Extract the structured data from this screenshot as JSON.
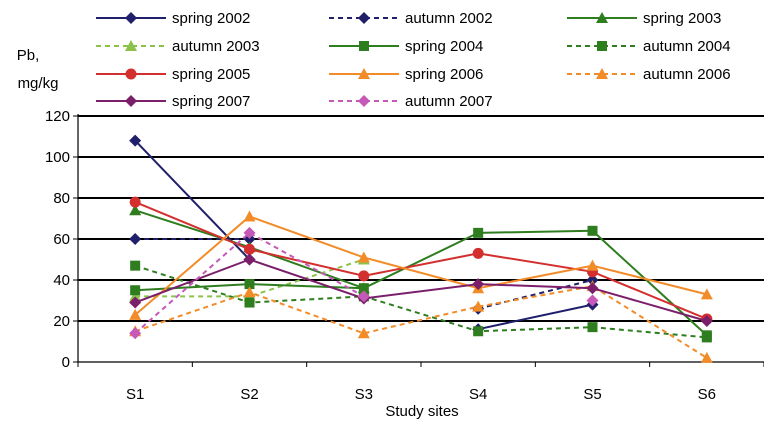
{
  "chart_data": {
    "type": "line",
    "ylabel_line1": "Pb,",
    "ylabel_line2": "mg/kg",
    "xlabel": "Study sites",
    "categories": [
      "S1",
      "S2",
      "S3",
      "S4",
      "S5",
      "S6"
    ],
    "ylim": [
      0,
      120
    ],
    "yticks": [
      0,
      20,
      40,
      60,
      80,
      100,
      120
    ],
    "grid": true,
    "legend_placement": "top",
    "series": [
      {
        "name": "spring 2002",
        "values": [
          108,
          50,
          null,
          16,
          28,
          null
        ],
        "color": "#1f1f6b",
        "dash": false,
        "marker": "diamond"
      },
      {
        "name": "autumn 2002",
        "values": [
          60,
          60,
          null,
          26,
          40,
          null
        ],
        "color": "#1f1f6b",
        "dash": true,
        "marker": "diamond"
      },
      {
        "name": "spring 2003",
        "values": [
          74,
          56,
          36,
          null,
          null,
          null
        ],
        "color": "#2e7d1e",
        "dash": false,
        "marker": "triangle"
      },
      {
        "name": "autumn 2003",
        "values": [
          32,
          32,
          50,
          null,
          null,
          null
        ],
        "color": "#8bc34a",
        "dash": true,
        "marker": "triangle"
      },
      {
        "name": "spring 2004",
        "values": [
          35,
          38,
          36,
          63,
          64,
          13
        ],
        "color": "#2e7d1e",
        "dash": false,
        "marker": "square"
      },
      {
        "name": "autumn 2004",
        "values": [
          47,
          29,
          32,
          15,
          17,
          12
        ],
        "color": "#2e7d1e",
        "dash": true,
        "marker": "square"
      },
      {
        "name": "spring 2005",
        "values": [
          78,
          55,
          42,
          53,
          44,
          21
        ],
        "color": "#d32f2f",
        "dash": false,
        "marker": "circle"
      },
      {
        "name": "spring 2006",
        "values": [
          23,
          71,
          51,
          36,
          47,
          33
        ],
        "color": "#f28c28",
        "dash": false,
        "marker": "triangle"
      },
      {
        "name": "autumn 2006",
        "values": [
          15,
          34,
          14,
          27,
          37,
          2
        ],
        "color": "#f28c28",
        "dash": true,
        "marker": "triangle"
      },
      {
        "name": "spring 2007",
        "values": [
          29,
          50,
          31,
          38,
          36,
          20
        ],
        "color": "#7b1f6b",
        "dash": false,
        "marker": "diamond"
      },
      {
        "name": "autumn 2007",
        "values": [
          14,
          63,
          32,
          null,
          30,
          null
        ],
        "color": "#c659b8",
        "dash": true,
        "marker": "diamond"
      }
    ]
  }
}
